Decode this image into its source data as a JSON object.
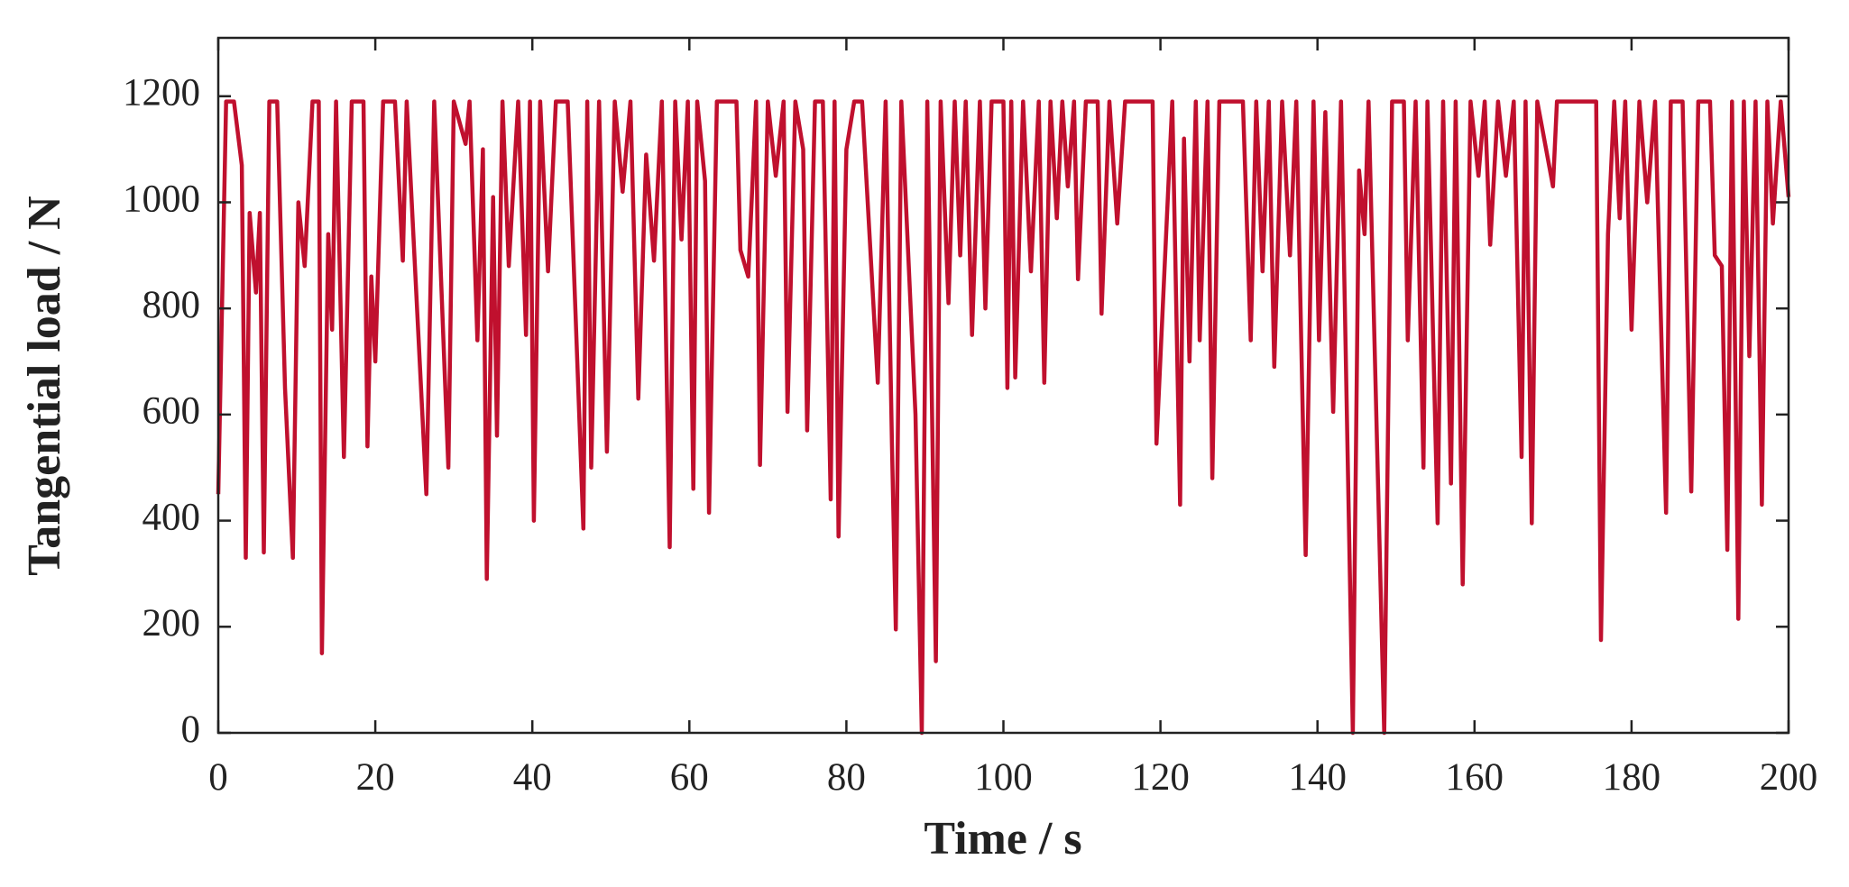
{
  "chart_data": {
    "type": "line",
    "xlabel": "Time / s",
    "ylabel": "Tangential load / N",
    "xlim": [
      0,
      200
    ],
    "xticks": [
      0,
      20,
      40,
      60,
      80,
      100,
      120,
      140,
      160,
      180,
      200
    ],
    "ylim": [
      0,
      1310
    ],
    "yticks": [
      0,
      200,
      400,
      600,
      800,
      1000,
      1200
    ],
    "grid": false,
    "series": [
      {
        "color": "#c0102e",
        "x": [
          0,
          1,
          2,
          3,
          3.5,
          4,
          4.8,
          5.3,
          5.8,
          6.5,
          7.5,
          8.5,
          9.5,
          10.2,
          11,
          12,
          12.8,
          13.2,
          14,
          14.5,
          15,
          16,
          17,
          18.5,
          19,
          19.5,
          20,
          21,
          22.5,
          23.5,
          24,
          26.5,
          27.5,
          29.3,
          30,
          31.5,
          32,
          33,
          33.7,
          34.2,
          35,
          35.5,
          36.2,
          37,
          38.2,
          39.2,
          39.7,
          40.2,
          41,
          42,
          43,
          44.5,
          45.5,
          46.5,
          47,
          47.5,
          48.5,
          49.5,
          50.5,
          51.5,
          52.5,
          53.5,
          54.5,
          55.5,
          56.5,
          57.5,
          58.2,
          59,
          59.8,
          60.5,
          61,
          62,
          62.5,
          63.5,
          66,
          66.5,
          67.5,
          68.5,
          69,
          70,
          71,
          72,
          72.5,
          73.5,
          74.5,
          75,
          76,
          77,
          78,
          78.5,
          79,
          80,
          81,
          82,
          84,
          85,
          85.8,
          86.3,
          87,
          88.8,
          89.6,
          90.3,
          91.4,
          92,
          93,
          93.8,
          94.5,
          95.2,
          96,
          97,
          97.7,
          98.5,
          100,
          100.5,
          101,
          101.5,
          102.5,
          103.5,
          104.5,
          105.2,
          106,
          106.8,
          107.5,
          108.2,
          109,
          109.5,
          110.5,
          112,
          112.5,
          113.5,
          114.5,
          115.5,
          119,
          119.5,
          120.5,
          121.5,
          122.5,
          123,
          123.7,
          124.5,
          125,
          126,
          126.6,
          127.5,
          130.5,
          131.5,
          132.2,
          133,
          133.8,
          134.5,
          135.5,
          136.5,
          137.3,
          138.5,
          139.5,
          140.2,
          141,
          142,
          143,
          144.5,
          145.3,
          146,
          146.5,
          148.5,
          149.5,
          151,
          151.5,
          152.5,
          153.5,
          154,
          155.3,
          156,
          157,
          157.6,
          158.5,
          159.5,
          160.5,
          161.3,
          162,
          163,
          164,
          165,
          166,
          166.5,
          167.3,
          168,
          170,
          170.5,
          175.5,
          176.1,
          177,
          177.8,
          178.5,
          179.2,
          180,
          181,
          182,
          183,
          184.4,
          185,
          186.5,
          187.6,
          188.5,
          190,
          190.6,
          191.5,
          192.2,
          192.8,
          193.6,
          194.3,
          195,
          195.8,
          196.6,
          197.3,
          198,
          199,
          200
        ],
        "values": [
          450,
          1190,
          1190,
          1070,
          330,
          980,
          830,
          980,
          340,
          1190,
          1190,
          650,
          330,
          1000,
          880,
          1190,
          1190,
          150,
          940,
          760,
          1190,
          520,
          1190,
          1190,
          540,
          860,
          700,
          1190,
          1190,
          890,
          1190,
          450,
          1190,
          500,
          1190,
          1110,
          1190,
          740,
          1100,
          290,
          1010,
          560,
          1190,
          880,
          1190,
          750,
          1190,
          400,
          1190,
          870,
          1190,
          1190,
          790,
          385,
          1190,
          500,
          1190,
          530,
          1190,
          1020,
          1190,
          630,
          1090,
          890,
          1190,
          350,
          1190,
          930,
          1190,
          460,
          1190,
          1040,
          415,
          1190,
          1190,
          910,
          860,
          1190,
          505,
          1190,
          1050,
          1190,
          605,
          1190,
          1100,
          570,
          1190,
          1190,
          440,
          1190,
          370,
          1100,
          1190,
          1190,
          660,
          1190,
          545,
          195,
          1190,
          600,
          0,
          1190,
          135,
          1190,
          810,
          1190,
          900,
          1190,
          750,
          1190,
          800,
          1190,
          1190,
          650,
          1190,
          670,
          1190,
          870,
          1190,
          660,
          1190,
          970,
          1190,
          1030,
          1190,
          855,
          1190,
          1190,
          790,
          1190,
          960,
          1190,
          1190,
          545,
          870,
          1190,
          430,
          1120,
          700,
          1190,
          740,
          1190,
          480,
          1190,
          1190,
          740,
          1190,
          870,
          1190,
          690,
          1190,
          900,
          1190,
          335,
          1190,
          740,
          1170,
          605,
          1190,
          0,
          1060,
          940,
          1190,
          0,
          1190,
          1190,
          740,
          1190,
          500,
          1190,
          395,
          1190,
          470,
          1190,
          280,
          1190,
          1050,
          1190,
          920,
          1190,
          1050,
          1190,
          520,
          1190,
          395,
          1190,
          1030,
          1190,
          1190,
          175,
          940,
          1190,
          970,
          1190,
          760,
          1190,
          1000,
          1190,
          415,
          1190,
          1190,
          455,
          1190,
          1190,
          900,
          880,
          345,
          1190,
          215,
          1190,
          710,
          1190,
          430,
          1190,
          960,
          1190,
          1010
        ]
      }
    ]
  }
}
